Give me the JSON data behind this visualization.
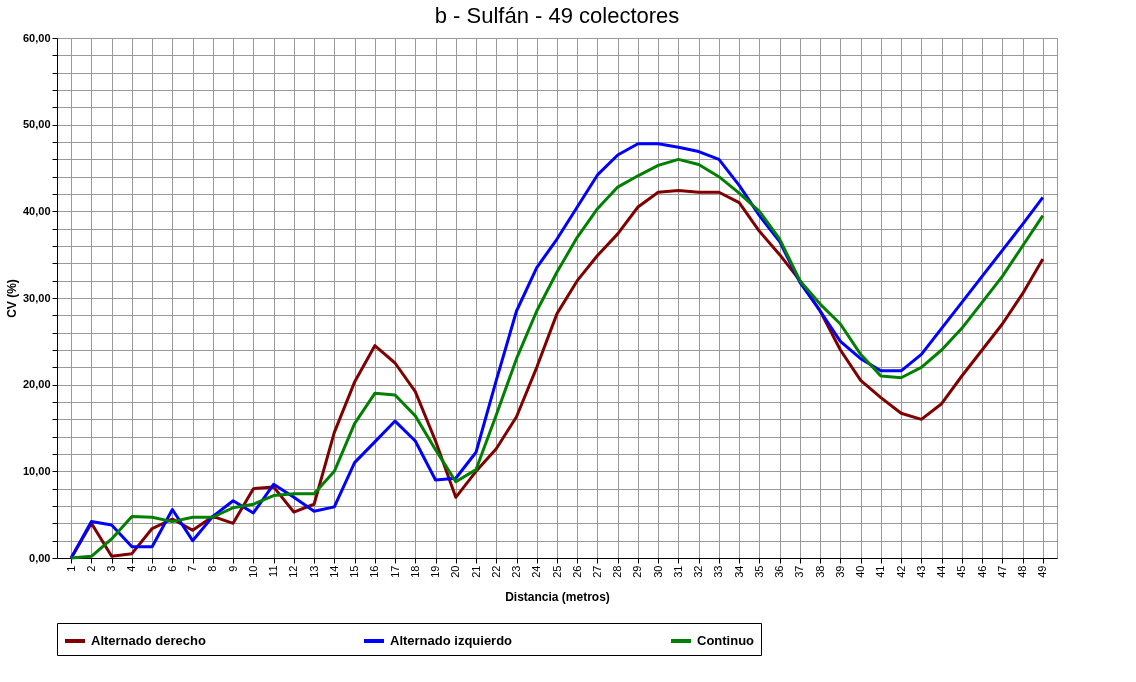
{
  "chart_data": {
    "type": "line",
    "title": "b - Sulfán  - 49 colectores",
    "xlabel": "Distancia (metros)",
    "ylabel": "CV (%)",
    "categories": [
      "1",
      "2",
      "3",
      "4",
      "5",
      "6",
      "7",
      "8",
      "9",
      "10",
      "11",
      "12",
      "13",
      "14",
      "15",
      "16",
      "17",
      "18",
      "19",
      "20",
      "21",
      "22",
      "23",
      "24",
      "25",
      "26",
      "27",
      "28",
      "29",
      "30",
      "31",
      "32",
      "33",
      "34",
      "35",
      "36",
      "37",
      "38",
      "39",
      "40",
      "41",
      "42",
      "43",
      "44",
      "45",
      "46",
      "47",
      "48",
      "49"
    ],
    "series": [
      {
        "name": "Alternado derecho",
        "color": "#800000",
        "values": [
          0,
          4.0,
          0.2,
          0.5,
          3.4,
          4.5,
          3.2,
          4.8,
          4.0,
          8.0,
          8.2,
          5.3,
          6.2,
          14.5,
          20.3,
          24.5,
          22.5,
          19.2,
          13.5,
          7.0,
          10.0,
          12.6,
          16.3,
          22.0,
          28.2,
          32.0,
          34.9,
          37.4,
          40.5,
          42.2,
          42.4,
          42.2,
          42.2,
          41.0,
          37.7,
          35.0,
          32.0,
          28.5,
          24.0,
          20.5,
          18.5,
          16.7,
          16.0,
          17.8,
          21.0,
          24.0,
          27.0,
          30.5,
          34.5
        ]
      },
      {
        "name": "Alternado izquierdo",
        "color": "#0000ff",
        "values": [
          0,
          4.2,
          3.8,
          1.3,
          1.3,
          5.6,
          2.0,
          4.8,
          6.6,
          5.2,
          8.5,
          7.0,
          5.4,
          5.9,
          11.0,
          13.4,
          15.8,
          13.5,
          9.0,
          9.2,
          12.2,
          20.5,
          28.5,
          33.5,
          36.8,
          40.5,
          44.2,
          46.5,
          47.8,
          47.8,
          47.4,
          46.9,
          46.0,
          43.0,
          39.5,
          36.5,
          31.8,
          28.5,
          25.0,
          23.0,
          21.6,
          21.6,
          23.5,
          26.5,
          29.5,
          32.5,
          35.5,
          38.5,
          41.6
        ]
      },
      {
        "name": "Continuo",
        "color": "#008000",
        "values": [
          0,
          0.2,
          2.2,
          4.8,
          4.7,
          4.2,
          4.7,
          4.7,
          5.8,
          6.2,
          7.2,
          7.4,
          7.4,
          10.0,
          15.5,
          19.0,
          18.8,
          16.4,
          12.5,
          8.8,
          10.2,
          16.5,
          23.0,
          28.5,
          33.0,
          37.0,
          40.3,
          42.8,
          44.1,
          45.3,
          46.0,
          45.4,
          44.0,
          42.1,
          40.0,
          36.8,
          32.0,
          29.3,
          27.0,
          23.5,
          21.0,
          20.8,
          22.0,
          24.0,
          26.5,
          29.5,
          32.5,
          36.0,
          39.5
        ]
      }
    ],
    "ylim": [
      0,
      60
    ],
    "yticks": [
      {
        "value": 0,
        "label": "0,00"
      },
      {
        "value": 2,
        "label": null
      },
      {
        "value": 4,
        "label": null
      },
      {
        "value": 6,
        "label": null
      },
      {
        "value": 8,
        "label": null
      },
      {
        "value": 10,
        "label": "10,00"
      },
      {
        "value": 12,
        "label": null
      },
      {
        "value": 14,
        "label": null
      },
      {
        "value": 16,
        "label": null
      },
      {
        "value": 18,
        "label": null
      },
      {
        "value": 20,
        "label": "20,00"
      },
      {
        "value": 22,
        "label": null
      },
      {
        "value": 24,
        "label": null
      },
      {
        "value": 26,
        "label": null
      },
      {
        "value": 28,
        "label": null
      },
      {
        "value": 30,
        "label": "30,00"
      },
      {
        "value": 32,
        "label": null
      },
      {
        "value": 34,
        "label": null
      },
      {
        "value": 36,
        "label": null
      },
      {
        "value": 38,
        "label": null
      },
      {
        "value": 40,
        "label": "40,00"
      },
      {
        "value": 42,
        "label": null
      },
      {
        "value": 44,
        "label": null
      },
      {
        "value": 46,
        "label": null
      },
      {
        "value": 48,
        "label": null
      },
      {
        "value": 50,
        "label": "50,00"
      },
      {
        "value": 52,
        "label": null
      },
      {
        "value": 54,
        "label": null
      },
      {
        "value": 56,
        "label": null
      },
      {
        "value": 58,
        "label": null
      },
      {
        "value": 60,
        "label": "60,00"
      }
    ],
    "grid": true,
    "legend": "bottom",
    "marker": "none",
    "line_style": "solid"
  }
}
